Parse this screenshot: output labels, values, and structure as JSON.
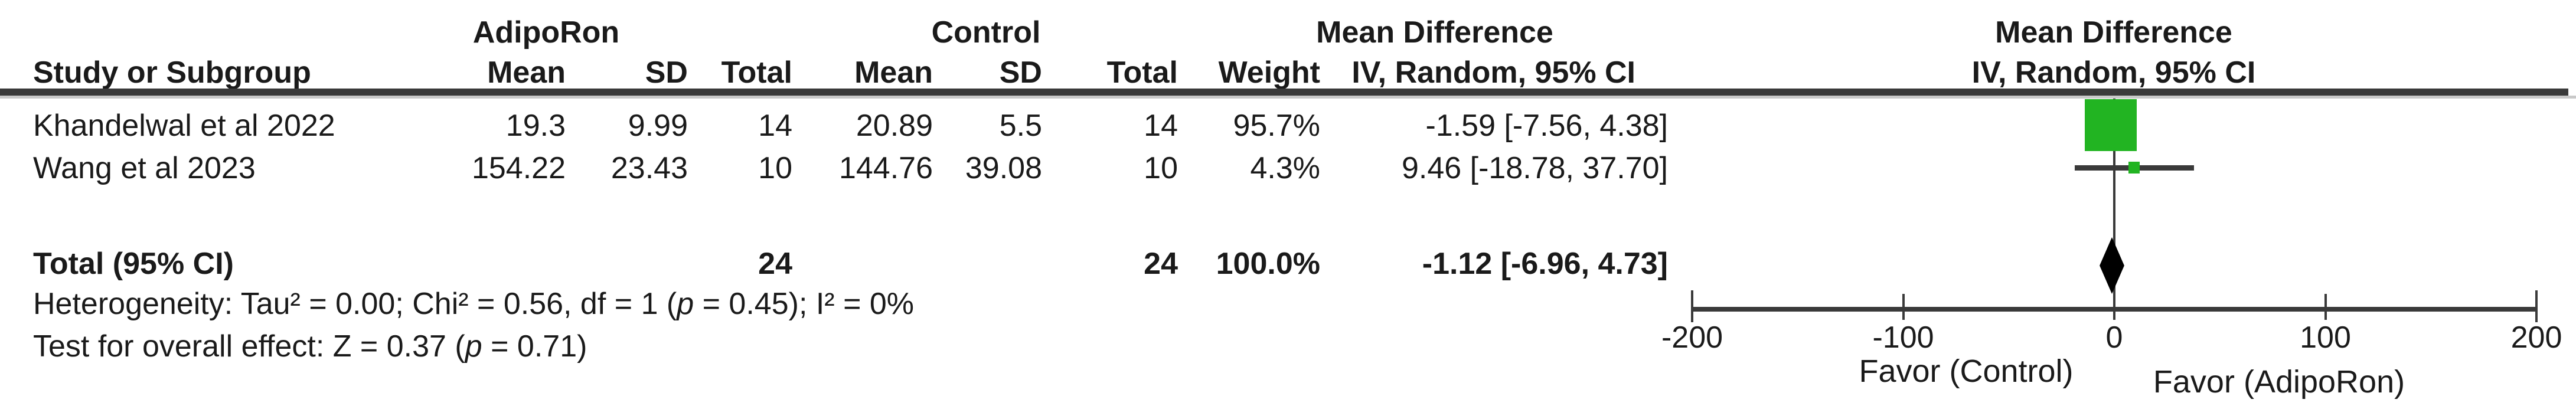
{
  "table": {
    "group1": "AdipoRon",
    "group2": "Control",
    "md_header": "Mean Difference",
    "plot_header_line1": "Mean Difference",
    "plot_header_line2": "IV, Random, 95% CI",
    "col_headers": {
      "study": "Study or Subgroup",
      "mean": "Mean",
      "sd": "SD",
      "total": "Total",
      "weight": "Weight",
      "iv": "IV, Random, 95% CI"
    },
    "rows": [
      {
        "study": "Khandelwal et al 2022",
        "mean1": "19.3",
        "sd1": "9.99",
        "total1": "14",
        "mean2": "20.89",
        "sd2": "5.5",
        "total2": "14",
        "weight": "95.7%",
        "ci": "-1.59 [-7.56, 4.38]"
      },
      {
        "study": "Wang et al 2023",
        "mean1": "154.22",
        "sd1": "23.43",
        "total1": "10",
        "mean2": "144.76",
        "sd2": "39.08",
        "total2": "10",
        "weight": "4.3%",
        "ci": "9.46 [-18.78, 37.70]"
      }
    ],
    "total_row": {
      "label": "Total (95% CI)",
      "total1": "24",
      "total2": "24",
      "weight": "100.0%",
      "ci": "-1.12 [-6.96, 4.73]"
    },
    "footer": {
      "het_pre": "Heterogeneity: Tau² = 0.00; Chi² = 0.56, df = 1 (",
      "het_p": "p",
      "het_post": " = 0.45); I² = 0%",
      "test_pre": "Test for overall effect: Z = 0.37 (",
      "test_p": "p",
      "test_post": " = 0.71)"
    },
    "axis_labels": [
      "-200",
      "-100",
      "0",
      "100",
      "200"
    ]
  },
  "chart_data": {
    "type": "forest",
    "title": "Mean Difference — IV, Random, 95% CI",
    "axis": {
      "min": -200,
      "max": 200,
      "ticks": [
        -200,
        -100,
        0,
        100,
        200
      ]
    },
    "studies": [
      {
        "label": "Khandelwal et al 2022",
        "mean_difference": -1.59,
        "ci_low": -7.56,
        "ci_high": 4.38,
        "weight_pct": 95.7
      },
      {
        "label": "Wang et al 2023",
        "mean_difference": 9.46,
        "ci_low": -18.78,
        "ci_high": 37.7,
        "weight_pct": 4.3
      }
    ],
    "total": {
      "label": "Total (95% CI)",
      "mean_difference": -1.12,
      "ci_low": -6.96,
      "ci_high": 4.73,
      "weight_pct": 100.0
    },
    "favor_left": "Favor (Control)",
    "favor_right": "Favor (AdipoRon)",
    "marker_color": "#22b422",
    "line_color": "#3a3a3a",
    "diamond_color": "#000000"
  }
}
